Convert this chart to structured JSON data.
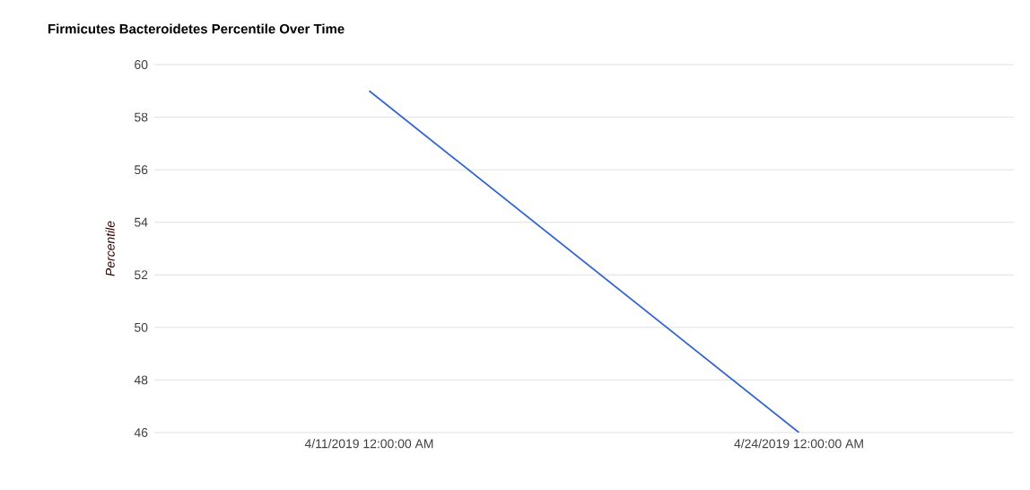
{
  "chart_data": {
    "type": "line",
    "title": "Firmicutes Bacteroidetes Percentile Over Time",
    "ylabel": "Percentile",
    "categories": [
      "4/11/2019 12:00:00 AM",
      "4/24/2019 12:00:00 AM"
    ],
    "series": [
      {
        "color": "#3366cc",
        "values": [
          59,
          46
        ]
      }
    ],
    "ylim": [
      46,
      60
    ],
    "yticks": [
      46,
      48,
      50,
      52,
      54,
      56,
      58,
      60
    ],
    "grid": "y",
    "marker": "none",
    "line_style": "solid"
  }
}
